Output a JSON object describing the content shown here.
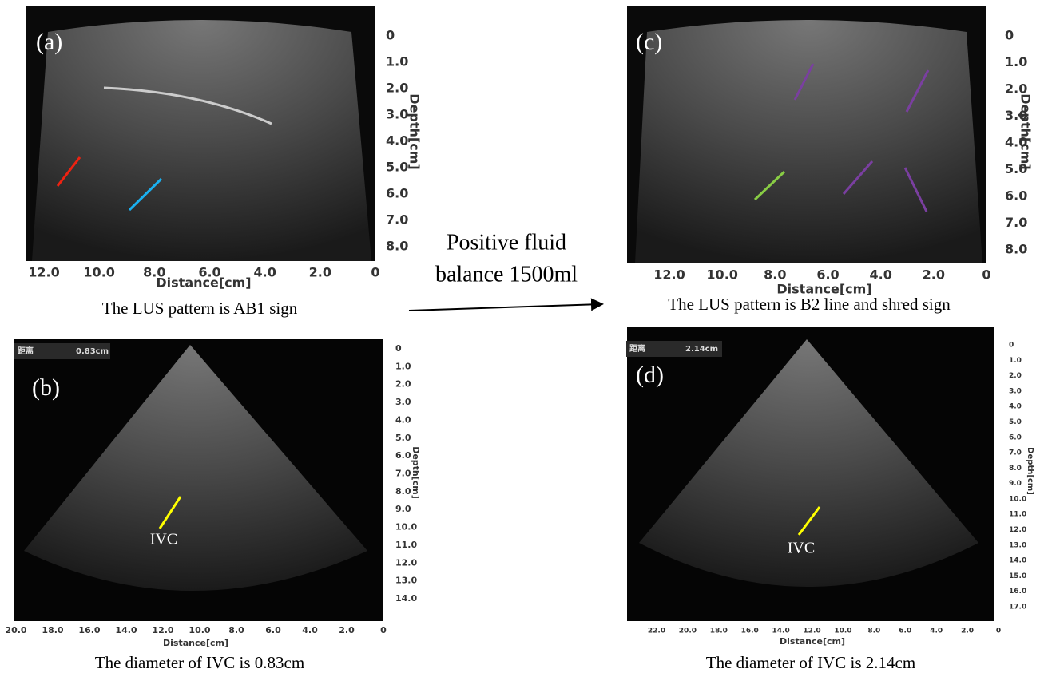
{
  "panels": [
    {
      "label": "(a)",
      "depth_label": "Depth[cm]",
      "depth_ticks": [
        "0",
        "1.0",
        "2.0",
        "3.0",
        "4.0",
        "5.0",
        "6.0",
        "7.0",
        "8.0"
      ],
      "distance_label": "Distance[cm]",
      "distance_ticks": [
        "12.0",
        "10.0",
        "8.0",
        "6.0",
        "4.0",
        "2.0",
        "0"
      ],
      "caption": "The LUS pattern is AB1 sign"
    },
    {
      "label": "(b)",
      "readout": "距离",
      "readout_value": "0.83cm",
      "annotation": "IVC",
      "depth_label": "Depth[cm]",
      "depth_ticks": [
        "0",
        "1.0",
        "2.0",
        "3.0",
        "4.0",
        "5.0",
        "6.0",
        "7.0",
        "8.0",
        "9.0",
        "10.0",
        "11.0",
        "12.0",
        "13.0",
        "14.0"
      ],
      "distance_label": "Distance[cm]",
      "distance_ticks": [
        "20.0",
        "18.0",
        "16.0",
        "14.0",
        "12.0",
        "10.0",
        "8.0",
        "6.0",
        "4.0",
        "2.0",
        "0"
      ],
      "caption": "The diameter of IVC is 0.83cm"
    },
    {
      "label": "(c)",
      "depth_label": "Depth[cm]",
      "depth_ticks": [
        "0",
        "1.0",
        "2.0",
        "3.0",
        "4.0",
        "5.0",
        "6.0",
        "7.0",
        "8.0"
      ],
      "distance_label": "Distance[cm]",
      "distance_ticks": [
        "12.0",
        "10.0",
        "8.0",
        "6.0",
        "4.0",
        "2.0",
        "0"
      ],
      "caption": "The LUS pattern is B2 line and shred sign"
    },
    {
      "label": "(d)",
      "readout": "距离",
      "readout_value": "2.14cm",
      "annotation": "IVC",
      "depth_label": "Depth[cm]",
      "depth_ticks": [
        "0",
        "1.0",
        "2.0",
        "3.0",
        "4.0",
        "5.0",
        "6.0",
        "7.0",
        "8.0",
        "9.0",
        "10.0",
        "11.0",
        "12.0",
        "13.0",
        "14.0",
        "15.0",
        "16.0",
        "17.0"
      ],
      "distance_label": "Distance[cm]",
      "distance_ticks": [
        "22.0",
        "20.0",
        "18.0",
        "16.0",
        "14.0",
        "12.0",
        "10.0",
        "8.0",
        "6.0",
        "4.0",
        "2.0",
        "0"
      ],
      "caption": "The diameter of IVC is 2.14cm"
    }
  ],
  "center_text": [
    "Positive fluid",
    "balance 1500ml"
  ]
}
